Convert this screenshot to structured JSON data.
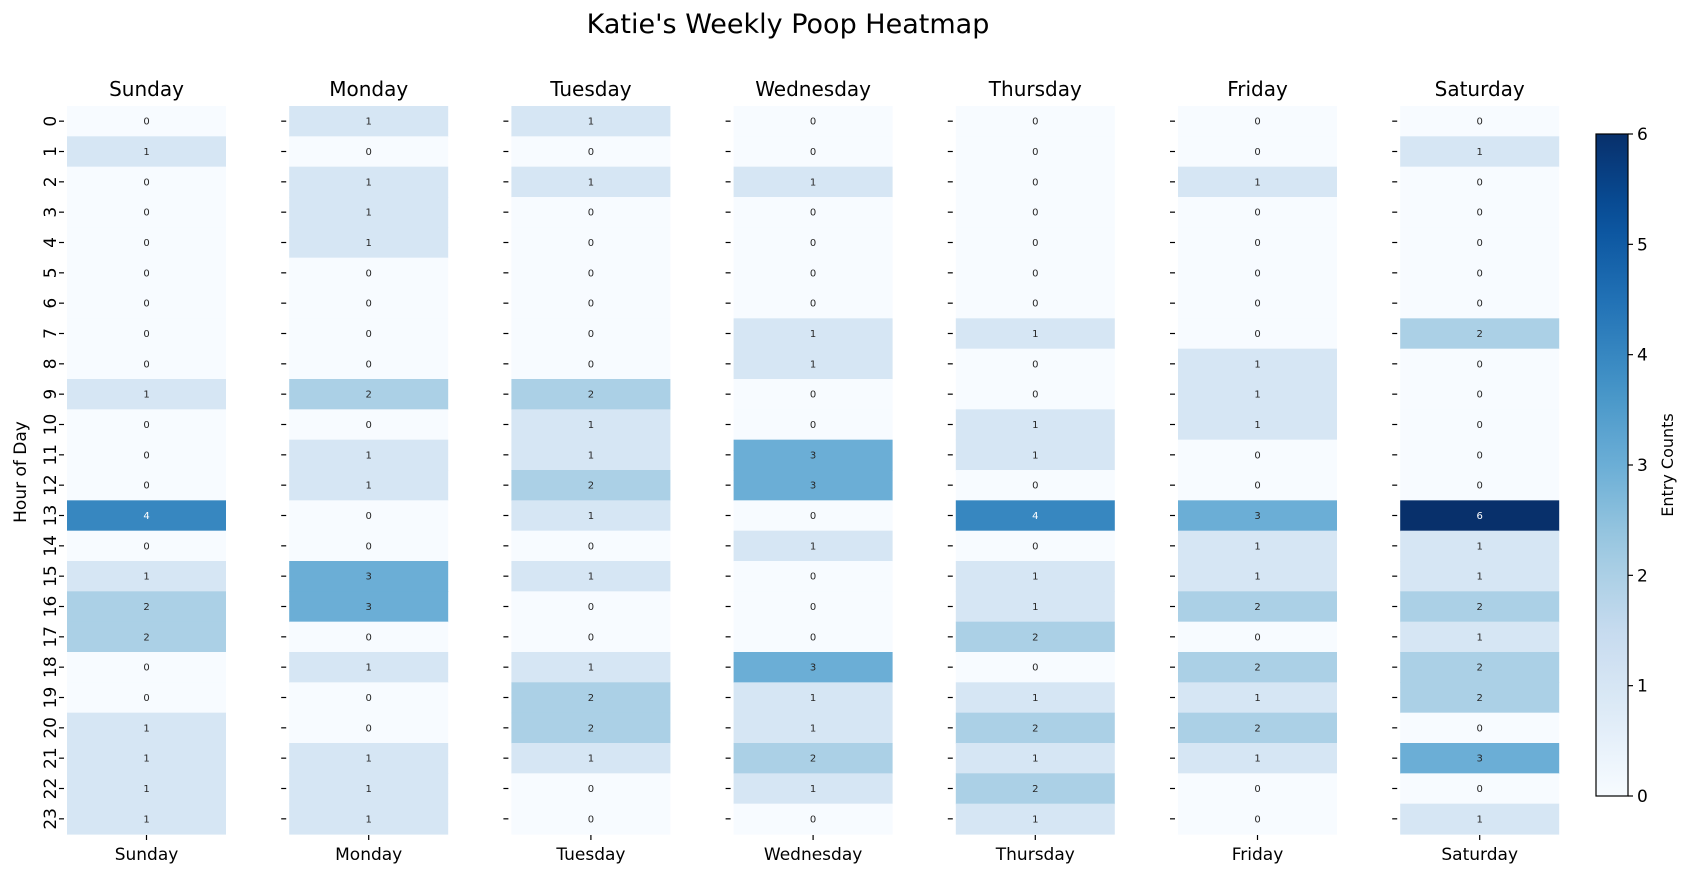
{
  "chart_data": {
    "type": "heatmap",
    "title": "Katie's Weekly Poop Heatmap",
    "ylabel": "Hour of Day",
    "colorbar_label": "Entry Counts",
    "colorbar_ticks": [
      "0",
      "1",
      "2",
      "3",
      "4",
      "5",
      "6"
    ],
    "value_range": [
      0,
      6
    ],
    "colormap": "Blues",
    "hours": [
      "0",
      "1",
      "2",
      "3",
      "4",
      "5",
      "6",
      "7",
      "8",
      "9",
      "10",
      "11",
      "12",
      "13",
      "14",
      "15",
      "16",
      "17",
      "18",
      "19",
      "20",
      "21",
      "22",
      "23"
    ],
    "days": [
      {
        "name": "Sunday",
        "values": [
          0,
          1,
          0,
          0,
          0,
          0,
          0,
          0,
          0,
          1,
          0,
          0,
          0,
          4,
          0,
          1,
          2,
          2,
          0,
          0,
          1,
          1,
          1,
          1
        ]
      },
      {
        "name": "Monday",
        "values": [
          1,
          0,
          1,
          1,
          1,
          0,
          0,
          0,
          0,
          2,
          0,
          1,
          1,
          0,
          0,
          3,
          3,
          0,
          1,
          0,
          0,
          1,
          1,
          1
        ]
      },
      {
        "name": "Tuesday",
        "values": [
          1,
          0,
          1,
          0,
          0,
          0,
          0,
          0,
          0,
          2,
          1,
          1,
          2,
          1,
          0,
          1,
          0,
          0,
          1,
          2,
          2,
          1,
          0,
          0
        ]
      },
      {
        "name": "Wednesday",
        "values": [
          0,
          0,
          1,
          0,
          0,
          0,
          0,
          1,
          1,
          0,
          0,
          3,
          3,
          0,
          1,
          0,
          0,
          0,
          3,
          1,
          1,
          2,
          1,
          0
        ]
      },
      {
        "name": "Thursday",
        "values": [
          0,
          0,
          0,
          0,
          0,
          0,
          0,
          1,
          0,
          0,
          1,
          1,
          0,
          4,
          0,
          1,
          1,
          2,
          0,
          1,
          2,
          1,
          2,
          1
        ]
      },
      {
        "name": "Friday",
        "values": [
          0,
          0,
          1,
          0,
          0,
          0,
          0,
          0,
          1,
          1,
          1,
          0,
          0,
          3,
          1,
          1,
          2,
          0,
          2,
          1,
          2,
          1,
          0,
          0
        ]
      },
      {
        "name": "Saturday",
        "values": [
          0,
          1,
          0,
          0,
          0,
          0,
          0,
          2,
          0,
          0,
          0,
          0,
          0,
          6,
          1,
          1,
          2,
          1,
          2,
          2,
          0,
          3,
          0,
          1
        ]
      }
    ]
  }
}
